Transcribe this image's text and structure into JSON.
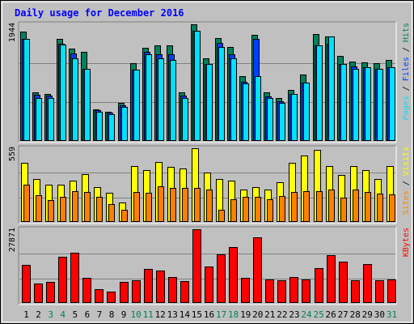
{
  "chart_data": {
    "type": "bar",
    "title": "Daily usage for December 2016",
    "categories": [
      "1",
      "2",
      "3",
      "4",
      "5",
      "6",
      "7",
      "8",
      "9",
      "10",
      "11",
      "12",
      "13",
      "14",
      "15",
      "16",
      "17",
      "18",
      "19",
      "20",
      "21",
      "22",
      "23",
      "24",
      "25",
      "26",
      "27",
      "28",
      "29",
      "30",
      "31"
    ],
    "weekend_days": [
      "3",
      "4",
      "10",
      "11",
      "17",
      "18",
      "24",
      "25",
      "31"
    ],
    "colors": {
      "title": "#0000ff",
      "hits": "#00805c",
      "files": "#0040ff",
      "pages": "#00e0ff",
      "visits": "#ffff00",
      "sites": "#ff8000",
      "kbytes": "#ff0000",
      "weekend_label": "#00805c",
      "weekday_label": "#000000",
      "background": "#c0c0c0",
      "grid": "#808080"
    },
    "panels": [
      {
        "max_label": "1944",
        "legend": [
          "Pages",
          "Files",
          "Hits"
        ],
        "ylim": [
          0,
          1944
        ],
        "series": [
          {
            "name": "Hits",
            "values": [
              1818,
              804,
              780,
              1705,
              1536,
              1479,
              531,
              480,
              633,
              1297,
              1546,
              1592,
              1596,
              804,
              1944,
              1371,
              1720,
              1561,
              1079,
              1770,
              804,
              718,
              854,
              1102,
              1787,
              1743,
              1415,
              1318,
              1311,
              1297,
              1346
            ]
          },
          {
            "name": "Files",
            "values": [
              1696,
              766,
              753,
              1625,
              1461,
              1201,
              507,
              468,
              600,
              1186,
              1488,
              1447,
              1441,
              750,
              1838,
              1283,
              1637,
              1441,
              988,
              1701,
              748,
              658,
              782,
              976,
              1596,
              1624,
              1283,
              1242,
              1230,
              1206,
              1235
            ]
          },
          {
            "name": "Pages",
            "values": [
              1696,
              713,
              713,
              1602,
              1376,
              1201,
              487,
              452,
              571,
              1186,
              1442,
              1381,
              1355,
              713,
              1838,
              1283,
              1564,
              1376,
              957,
              1080,
              713,
              638,
              782,
              976,
              1588,
              1744,
              1283,
              1196,
              1230,
              1206,
              1235
            ]
          }
        ]
      },
      {
        "max_label": "559",
        "legend": [
          "Sites",
          "Visits"
        ],
        "ylim": [
          0,
          559
        ],
        "series": [
          {
            "name": "Visits",
            "values": [
              449,
              323,
              284,
              280,
              311,
              364,
              267,
              221,
              150,
              426,
              391,
              452,
              415,
              404,
              559,
              374,
              323,
              315,
              244,
              262,
              247,
              300,
              449,
              503,
              545,
              426,
              359,
              424,
              396,
              323,
              423
            ]
          },
          {
            "name": "Sites",
            "values": [
              280,
              203,
              166,
              189,
              235,
              226,
              189,
              137,
              94,
              226,
              219,
              271,
              261,
              261,
              259,
              246,
              94,
              172,
              189,
              189,
              172,
              195,
              229,
              235,
              235,
              246,
              184,
              246,
              226,
              216,
              207
            ]
          }
        ]
      },
      {
        "max_label": "27871",
        "legend": [
          "KBytes"
        ],
        "ylim": [
          0,
          27871
        ],
        "series": [
          {
            "name": "KBytes",
            "values": [
              14352,
              7332,
              7997,
              17600,
              19000,
              9500,
              5100,
              4400,
              8000,
              8700,
              12800,
              12400,
              9700,
              8300,
              27871,
              13800,
              18500,
              21200,
              9500,
              24800,
              9000,
              8500,
              9900,
              9000,
              13300,
              18000,
              15500,
              8700,
              14800,
              8700,
              8800
            ]
          }
        ]
      }
    ]
  }
}
